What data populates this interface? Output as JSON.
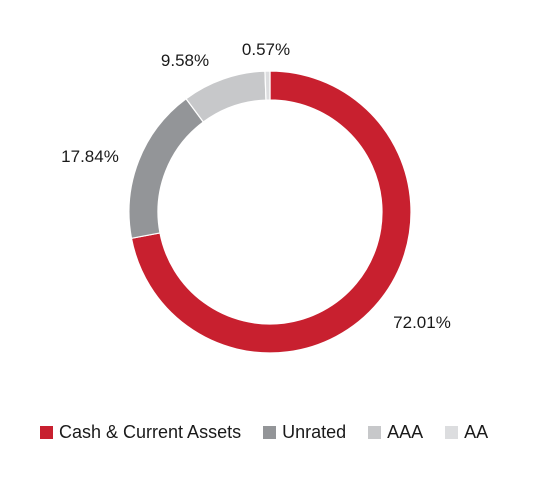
{
  "chart_data": {
    "type": "pie",
    "donut": true,
    "legend_position": "bottom",
    "title": "",
    "series": [
      {
        "name": "Cash & Current Assets",
        "value": 72.01,
        "label": "72.01%",
        "color": "#c8202f"
      },
      {
        "name": "Unrated",
        "value": 17.84,
        "label": "17.84%",
        "color": "#939598"
      },
      {
        "name": "AAA",
        "value": 9.58,
        "label": "9.58%",
        "color": "#c7c8ca"
      },
      {
        "name": "AA",
        "value": 0.57,
        "label": "0.57%",
        "color": "#dcdddf"
      }
    ]
  }
}
